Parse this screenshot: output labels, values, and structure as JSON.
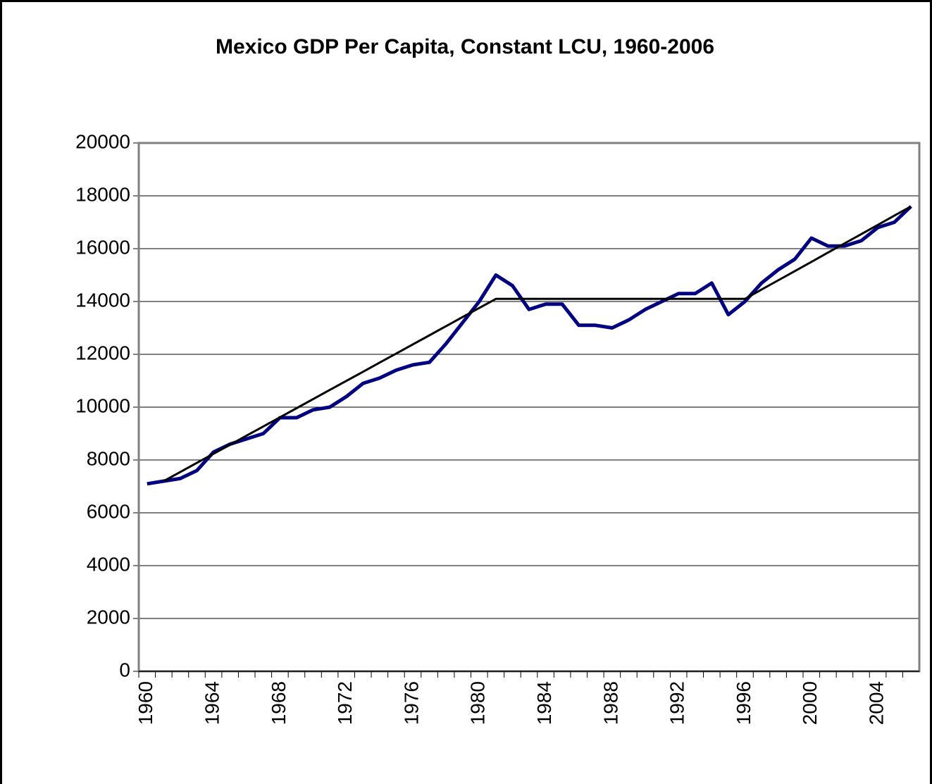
{
  "chart_data": {
    "type": "line",
    "title": "Mexico GDP Per Capita, Constant LCU, 1960-2006",
    "categories": [
      "1960",
      null,
      null,
      null,
      "1964",
      null,
      null,
      null,
      "1968",
      null,
      null,
      null,
      "1972",
      null,
      null,
      null,
      "1976",
      null,
      null,
      null,
      "1980",
      null,
      null,
      null,
      "1984",
      null,
      null,
      null,
      "1988",
      null,
      null,
      null,
      "1992",
      null,
      null,
      null,
      "1996",
      null,
      null,
      null,
      "2000",
      null,
      null,
      null,
      "2004",
      null,
      null
    ],
    "series": [
      {
        "color": "#000080",
        "values": [
          7100,
          7200,
          7300,
          7600,
          8300,
          8600,
          8800,
          9000,
          9600,
          9600,
          9900,
          10000,
          10400,
          10900,
          11100,
          11400,
          11600,
          11700,
          12400,
          13200,
          14000,
          15000,
          14600,
          13700,
          13900,
          13900,
          13100,
          13100,
          13000,
          13300,
          13700,
          14000,
          14300,
          14300,
          14700,
          13500,
          14000,
          14700,
          15200,
          15600,
          16400,
          16100,
          16100,
          16300,
          16800,
          17000,
          17600
        ]
      },
      {
        "color": "#000000",
        "values": [
          null,
          7200,
          7545,
          7890,
          8235,
          8580,
          8925,
          9270,
          9615,
          9960,
          10305,
          10650,
          10995,
          11340,
          11685,
          12030,
          12375,
          12720,
          13065,
          13410,
          13755,
          14100,
          14100,
          14100,
          14100,
          14100,
          14100,
          14100,
          14100,
          14100,
          14100,
          14100,
          14100,
          14100,
          14100,
          14100,
          14100,
          14450,
          14800,
          15150,
          15500,
          15850,
          16200,
          16550,
          16900,
          17250,
          17600
        ]
      }
    ],
    "ylim": [
      0,
      20000
    ],
    "yticks": [
      0,
      2000,
      4000,
      6000,
      8000,
      10000,
      12000,
      14000,
      16000,
      18000,
      20000
    ],
    "grid": true
  }
}
